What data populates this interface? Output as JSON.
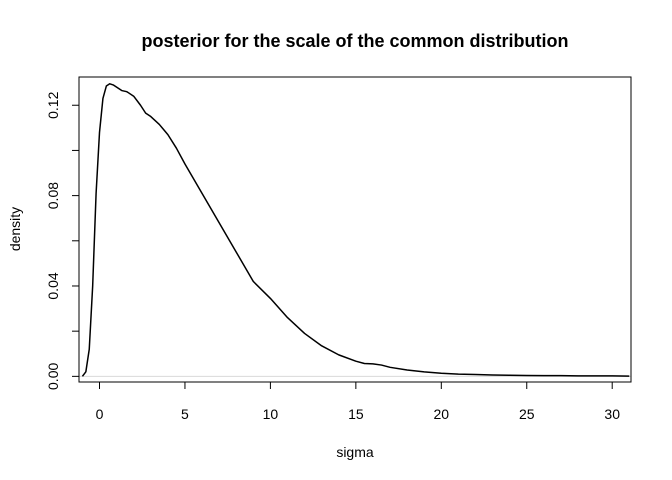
{
  "chart_data": {
    "type": "line",
    "title": "posterior for the scale of the common distribution",
    "xlabel": "sigma",
    "ylabel": "density",
    "xlim": [
      -1.2,
      31.1
    ],
    "ylim": [
      -0.0025,
      0.1325
    ],
    "xticks": [
      0,
      5,
      10,
      15,
      20,
      25,
      30
    ],
    "yticks": [
      0.0,
      0.04,
      0.08,
      0.12
    ],
    "ytick_labels": [
      "0.00",
      "0.04",
      "0.08",
      "0.12"
    ],
    "baseline": 0,
    "baseline_color": "#d9d9d9",
    "line_color": "#000000",
    "grid": false,
    "series": [
      {
        "x": [
          -1.0,
          -0.8,
          -0.6,
          -0.4,
          -0.2,
          0.0,
          0.2,
          0.4,
          0.6,
          0.8,
          1.0,
          1.3,
          1.6,
          2.0,
          2.4,
          2.7,
          3.0,
          3.5,
          4.0,
          4.5,
          5.0,
          6.0,
          7.0,
          8.0,
          9.0,
          10.0,
          11.0,
          12.0,
          13.0,
          14.0,
          15.0,
          15.5,
          16.0,
          16.5,
          17.0,
          18.0,
          19.0,
          20.0,
          21.0,
          22.0,
          23.0,
          24.0,
          25.0,
          26.0,
          27.0,
          28.0,
          29.0,
          30.0,
          31.0
        ],
        "y": [
          0.0,
          0.002,
          0.012,
          0.04,
          0.081,
          0.108,
          0.123,
          0.1285,
          0.1295,
          0.129,
          0.128,
          0.1265,
          0.126,
          0.124,
          0.12,
          0.1165,
          0.115,
          0.1115,
          0.107,
          0.101,
          0.094,
          0.081,
          0.068,
          0.055,
          0.042,
          0.0345,
          0.026,
          0.019,
          0.0135,
          0.0095,
          0.0067,
          0.0057,
          0.0055,
          0.005,
          0.004,
          0.0028,
          0.002,
          0.0014,
          0.001,
          0.0008,
          0.0006,
          0.0005,
          0.0004,
          0.0003,
          0.0003,
          0.0002,
          0.0002,
          0.0002,
          0.0001
        ]
      }
    ]
  }
}
